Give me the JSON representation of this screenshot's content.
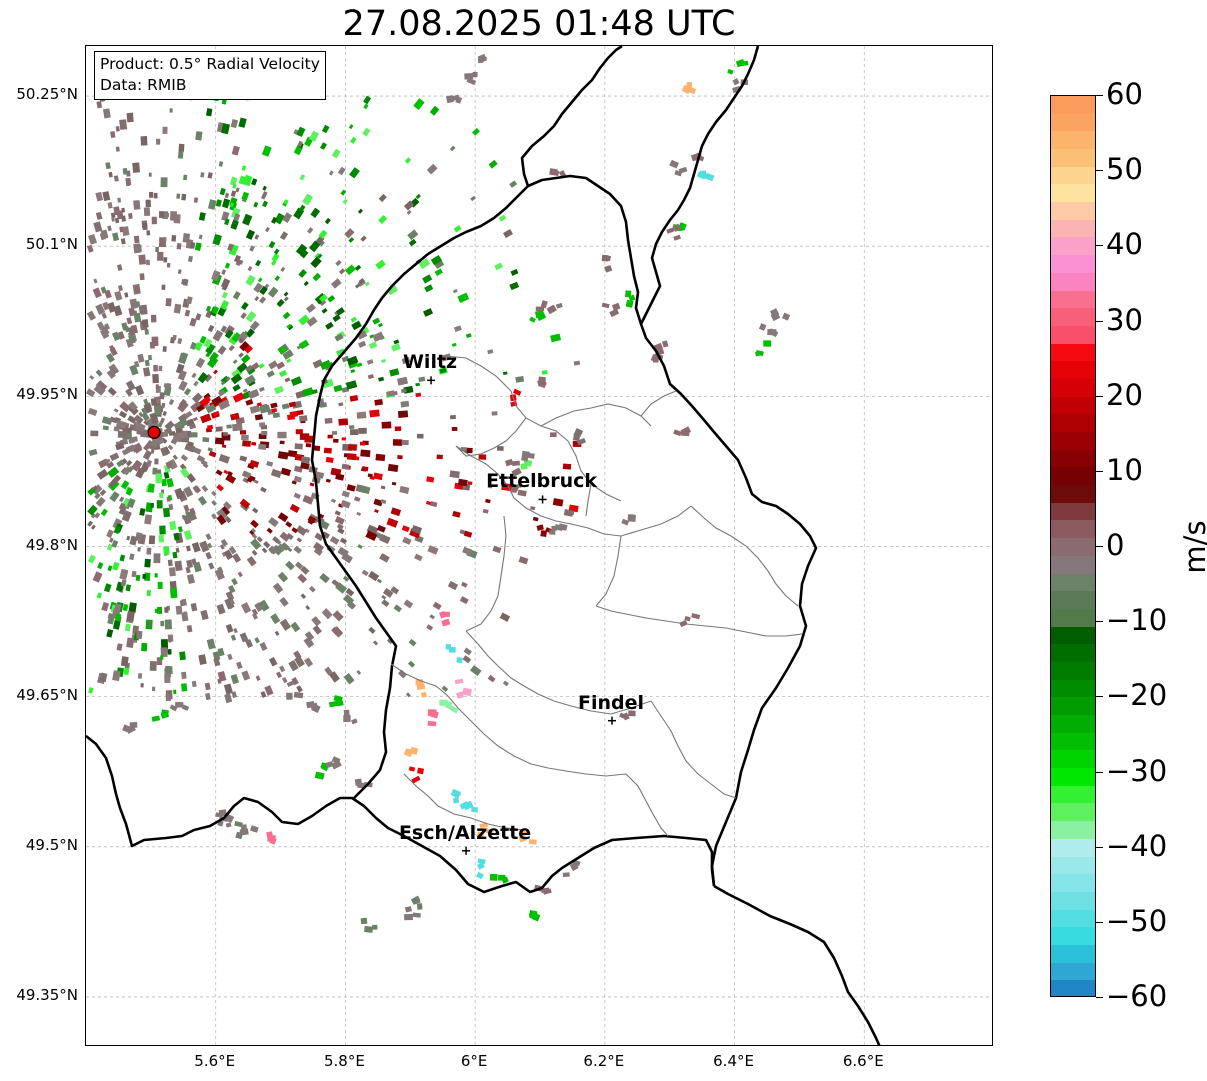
{
  "title": "27.08.2025 01:48 UTC",
  "info": {
    "product": "Product: 0.5° Radial Velocity",
    "data": "Data: RMIB"
  },
  "map": {
    "lon_range": [
      5.4,
      6.8
    ],
    "lat_range": [
      49.3,
      50.3
    ],
    "lat_ticks": [
      "50.25°N",
      "50.1°N",
      "49.95°N",
      "49.8°N",
      "49.65°N",
      "49.5°N",
      "49.35°N"
    ],
    "lon_ticks": [
      "5.6°E",
      "5.8°E",
      "6°E",
      "6.2°E",
      "6.4°E",
      "6.6°E"
    ],
    "radar_site": {
      "lon": 5.505,
      "lat": 49.914
    },
    "cities": [
      {
        "name": "Wiltz",
        "lon": 5.932,
        "lat": 49.966
      },
      {
        "name": "Ettelbruck",
        "lon": 6.104,
        "lat": 49.847
      },
      {
        "name": "Findel",
        "lon": 6.211,
        "lat": 49.626
      },
      {
        "name": "Esch/Alzette",
        "lon": 5.986,
        "lat": 49.496
      }
    ]
  },
  "colorbar": {
    "unit": "m/s",
    "range": [
      -60,
      60
    ],
    "tick_labels": [
      "60",
      "50",
      "40",
      "30",
      "20",
      "10",
      "0",
      "−10",
      "−20",
      "−30",
      "−40",
      "−50",
      "−60"
    ],
    "colors_top_to_bottom": [
      "#fb9c5c",
      "#fba462",
      "#fcb46c",
      "#fcbf76",
      "#fdd48e",
      "#fde2a0",
      "#fccba6",
      "#fbb4b3",
      "#f9a1c8",
      "#f991d2",
      "#f984c0",
      "#f86f90",
      "#f85f7b",
      "#f84f6b",
      "#f50a12",
      "#e60008",
      "#d40006",
      "#c10005",
      "#ae0004",
      "#9b0004",
      "#880003",
      "#760002",
      "#6d0a0a",
      "#7f3a3d",
      "#8b5a5e",
      "#8b6b70",
      "#85787a",
      "#6c8268",
      "#5c7a57",
      "#527a4a",
      "#005e00",
      "#006d00",
      "#007c00",
      "#008c00",
      "#009c00",
      "#00ad00",
      "#00bf00",
      "#00d400",
      "#00e800",
      "#32f032",
      "#5ff05f",
      "#8cf0a3",
      "#b1ecec",
      "#9be8ea",
      "#85e4e8",
      "#6de0e4",
      "#52dde0",
      "#38dbe0",
      "#2bc1d8",
      "#2ea7d4",
      "#1f85c4"
    ]
  }
}
